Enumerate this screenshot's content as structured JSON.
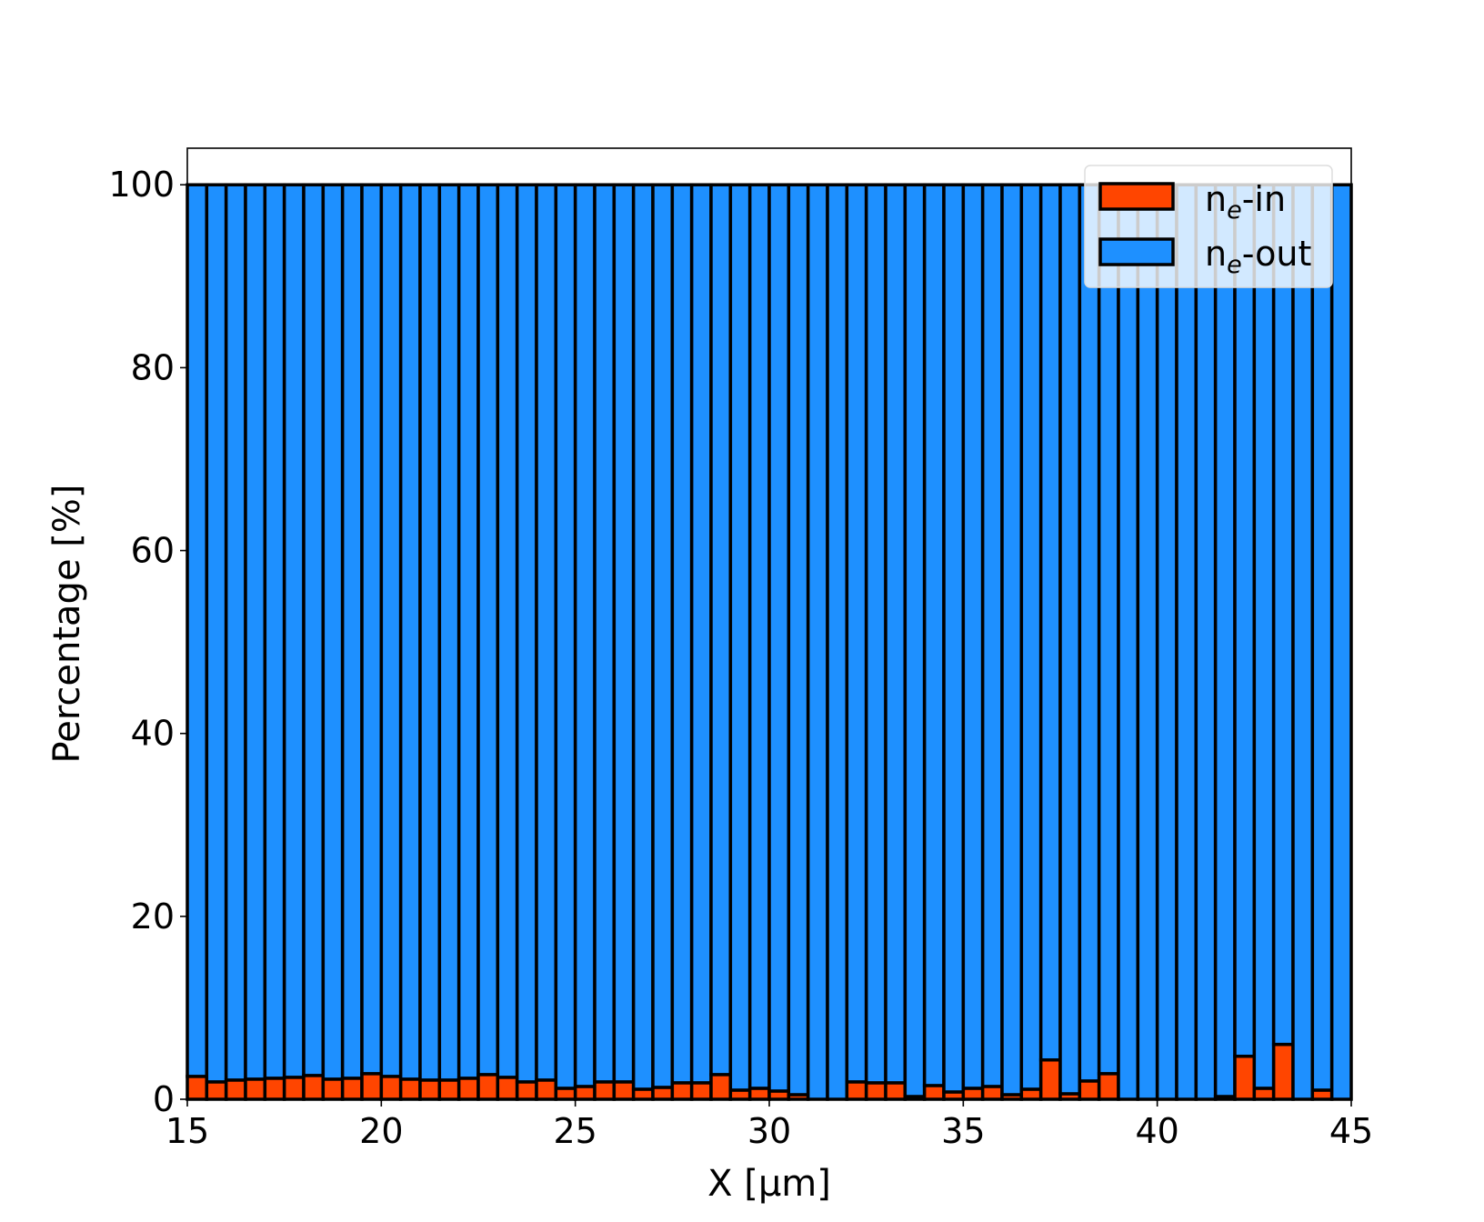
{
  "chart_data": {
    "type": "bar",
    "stacked": true,
    "xlabel": "X  [μm]",
    "ylabel": "Percentage  [%]",
    "xlim": [
      15,
      45
    ],
    "ylim": [
      0,
      104
    ],
    "xticks": [
      "15",
      "20",
      "25",
      "30",
      "35",
      "40",
      "45"
    ],
    "yticks": [
      "0",
      "20",
      "40",
      "60",
      "80",
      "100"
    ],
    "bar_width": 0.5,
    "x": [
      15,
      15.5,
      16,
      16.5,
      17,
      17.5,
      18,
      18.5,
      19,
      19.5,
      20,
      20.5,
      21,
      21.5,
      22,
      22.5,
      23,
      23.5,
      24,
      24.5,
      25,
      25.5,
      26,
      26.5,
      27,
      27.5,
      28,
      28.5,
      29,
      29.5,
      30,
      30.5,
      31,
      31.5,
      32,
      32.5,
      33,
      33.5,
      34,
      34.5,
      35,
      35.5,
      36,
      36.5,
      37,
      37.5,
      38,
      38.5,
      39,
      39.5,
      40,
      40.5,
      41,
      41.5,
      42,
      42.5,
      43,
      43.5,
      44,
      44.5
    ],
    "series": [
      {
        "name": "n_e-in",
        "label_main": "n",
        "label_sub": "e",
        "label_rest": "-in",
        "color": "#FF4500",
        "values": [
          2.5,
          1.9,
          2.1,
          2.2,
          2.3,
          2.4,
          2.6,
          2.2,
          2.3,
          2.8,
          2.5,
          2.2,
          2.1,
          2.1,
          2.3,
          2.7,
          2.4,
          1.9,
          2.1,
          1.2,
          1.4,
          1.9,
          1.9,
          1.1,
          1.3,
          1.8,
          1.8,
          2.7,
          1.0,
          1.2,
          0.9,
          0.5,
          0,
          0,
          1.9,
          1.8,
          1.8,
          0.3,
          1.5,
          0.8,
          1.2,
          1.4,
          0.5,
          1.1,
          4.3,
          0.6,
          2.0,
          2.8,
          0,
          0,
          0,
          0,
          0,
          0.3,
          4.7,
          1.2,
          6.0,
          0,
          1.0,
          0
        ]
      },
      {
        "name": "n_e-out",
        "label_main": "n",
        "label_sub": "e",
        "label_rest": "-out",
        "color": "#1E90FF",
        "values": "remainder to 100"
      }
    ],
    "legend": "top-right",
    "grid": false
  }
}
